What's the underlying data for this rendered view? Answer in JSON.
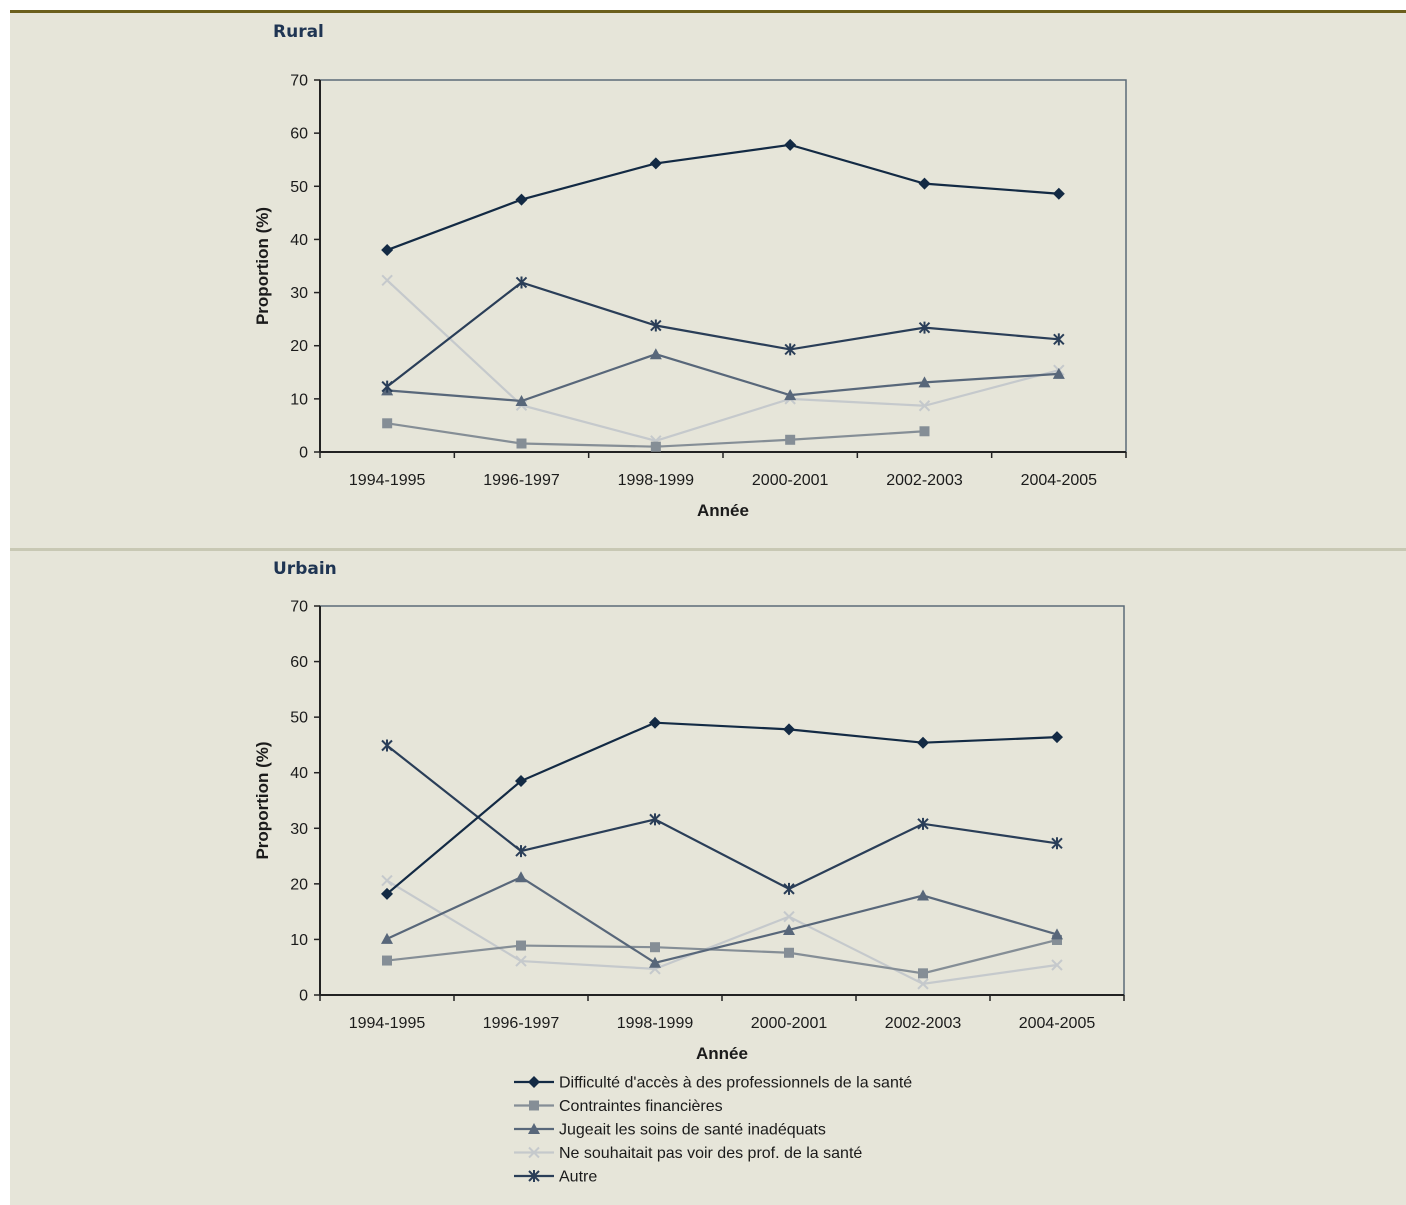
{
  "colors": {
    "background": "#e6e5d9",
    "top_rule": "#6b5f1c",
    "divider": "#c8c8b4",
    "title": "#1f3553",
    "series": [
      "#132a44",
      "#858e96",
      "#58677a",
      "#c5c9cc",
      "#2a3e58"
    ]
  },
  "legend": {
    "items": [
      {
        "label": "Difficulté d'accès à des professionnels de la santé",
        "marker": "diamond"
      },
      {
        "label": "Contraintes financières",
        "marker": "square"
      },
      {
        "label": "Jugeait les soins de santé inadéquats",
        "marker": "triangle"
      },
      {
        "label": "Ne souhaitait pas voir des prof. de la santé",
        "marker": "x"
      },
      {
        "label": "Autre",
        "marker": "star"
      }
    ]
  },
  "chart_data": [
    {
      "type": "line",
      "title": "Rural",
      "xlabel": "Année",
      "ylabel": "Proportion (%)",
      "ylim": [
        0,
        70
      ],
      "yticks": [
        0,
        10,
        20,
        30,
        40,
        50,
        60,
        70
      ],
      "grid": false,
      "categories": [
        "1994-1995",
        "1996-1997",
        "1998-1999",
        "2000-2001",
        "2002-2003",
        "2004-2005"
      ],
      "series": [
        {
          "name": "Difficulté d'accès à des professionnels de la santé",
          "values": [
            38,
            47.5,
            54.3,
            57.8,
            50.5,
            48.6
          ]
        },
        {
          "name": "Contraintes financières",
          "values": [
            5.4,
            1.6,
            1.0,
            2.3,
            3.9,
            null
          ]
        },
        {
          "name": "Jugeait les soins de santé inadéquats",
          "values": [
            11.6,
            9.6,
            18.4,
            10.7,
            13.1,
            14.7
          ]
        },
        {
          "name": "Ne souhaitait pas voir des prof. de la santé",
          "values": [
            32.3,
            8.8,
            2.1,
            10.0,
            8.7,
            15.4
          ]
        },
        {
          "name": "Autre",
          "values": [
            12.3,
            31.9,
            23.8,
            19.3,
            23.4,
            21.2
          ]
        }
      ]
    },
    {
      "type": "line",
      "title": "Urbain",
      "xlabel": "Année",
      "ylabel": "Proportion (%)",
      "ylim": [
        0,
        70
      ],
      "yticks": [
        0,
        10,
        20,
        30,
        40,
        50,
        60,
        70
      ],
      "grid": false,
      "categories": [
        "1994-1995",
        "1996-1997",
        "1998-1999",
        "2000-2001",
        "2002-2003",
        "2004-2005"
      ],
      "series": [
        {
          "name": "Difficulté d'accès à des professionnels de la santé",
          "values": [
            18.2,
            38.5,
            49,
            47.8,
            45.4,
            46.4
          ]
        },
        {
          "name": "Contraintes financières",
          "values": [
            6.2,
            8.9,
            8.6,
            7.6,
            3.9,
            9.9
          ]
        },
        {
          "name": "Jugeait les soins de santé inadéquats",
          "values": [
            10.1,
            21.2,
            5.8,
            11.7,
            17.9,
            10.9
          ]
        },
        {
          "name": "Ne souhaitait pas voir des prof. de la santé",
          "values": [
            20.6,
            6.1,
            4.7,
            14.1,
            2.0,
            5.4
          ]
        },
        {
          "name": "Autre",
          "values": [
            44.9,
            25.9,
            31.6,
            19.1,
            30.8,
            27.3
          ]
        }
      ]
    }
  ]
}
